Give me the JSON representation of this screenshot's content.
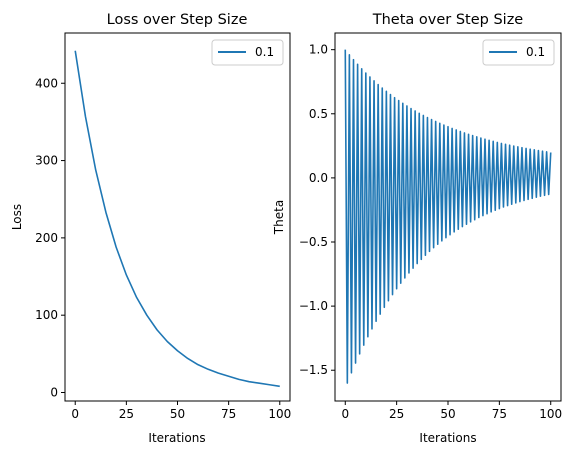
{
  "chart_data": [
    {
      "type": "line",
      "title": "Loss over Step Size",
      "xlabel": "Iterations",
      "ylabel": "Loss",
      "xlim": [
        -5,
        105
      ],
      "ylim": [
        -11,
        465
      ],
      "xticks": [
        0,
        25,
        50,
        75,
        100
      ],
      "yticks": [
        0,
        100,
        200,
        300,
        400
      ],
      "xtick_labels": [
        "0",
        "25",
        "50",
        "75",
        "100"
      ],
      "ytick_labels": [
        "0",
        "100",
        "200",
        "300",
        "400"
      ],
      "grid": false,
      "legend_position": "top-right",
      "series": [
        {
          "name": "0.1",
          "color": "#1f77b4",
          "x": [
            0,
            5,
            10,
            15,
            20,
            25,
            30,
            35,
            40,
            45,
            50,
            55,
            60,
            65,
            70,
            75,
            80,
            85,
            90,
            95,
            100
          ],
          "y": [
            442,
            357,
            288,
            233,
            188,
            152,
            123,
            100,
            81,
            66,
            54,
            44,
            36,
            30,
            25,
            21,
            17,
            14,
            12,
            10,
            8
          ]
        }
      ]
    },
    {
      "type": "line",
      "title": "Theta over Step Size",
      "xlabel": "Iterations",
      "ylabel": "Theta",
      "xlim": [
        -5,
        105
      ],
      "ylim": [
        -1.74,
        1.13
      ],
      "xticks": [
        0,
        25,
        50,
        75,
        100
      ],
      "yticks": [
        -1.5,
        -1.0,
        -0.5,
        0.0,
        0.5,
        1.0
      ],
      "xtick_labels": [
        "0",
        "25",
        "50",
        "75",
        "100"
      ],
      "ytick_labels": [
        "−1.5",
        "−1.0",
        "−0.5",
        "0.0",
        "0.5",
        "1.0"
      ],
      "grid": false,
      "legend_position": "top-right",
      "series": [
        {
          "name": "0.1",
          "color": "#1f77b4",
          "x": [
            0,
            1,
            2,
            3,
            4,
            5,
            6,
            7,
            8,
            9,
            10,
            11,
            12,
            13,
            14,
            15,
            16,
            17,
            18,
            19,
            20,
            21,
            22,
            23,
            24,
            25,
            26,
            27,
            28,
            29,
            30,
            31,
            32,
            33,
            34,
            35,
            36,
            37,
            38,
            39,
            40,
            41,
            42,
            43,
            44,
            45,
            46,
            47,
            48,
            49,
            50,
            51,
            52,
            53,
            54,
            55,
            56,
            57,
            58,
            59,
            60,
            61,
            62,
            63,
            64,
            65,
            66,
            67,
            68,
            69,
            70,
            71,
            72,
            73,
            74,
            75,
            76,
            77,
            78,
            79,
            80,
            81,
            82,
            83,
            84,
            85,
            86,
            87,
            88,
            89,
            90,
            91,
            92,
            93,
            94,
            95,
            96,
            97,
            98,
            99,
            100
          ],
          "y": [
            1.0,
            -1.6,
            0.96,
            -1.52,
            0.922,
            -1.444,
            0.886,
            -1.372,
            0.851,
            -1.304,
            0.818,
            -1.239,
            0.787,
            -1.177,
            0.757,
            -1.118,
            0.728,
            -1.062,
            0.701,
            -1.009,
            0.675,
            -0.958,
            0.65,
            -0.91,
            0.626,
            -0.864,
            0.603,
            -0.821,
            0.582,
            -0.78,
            0.561,
            -0.741,
            0.541,
            -0.704,
            0.522,
            -0.668,
            0.504,
            -0.635,
            0.487,
            -0.603,
            0.471,
            -0.573,
            0.455,
            -0.544,
            0.44,
            -0.517,
            0.426,
            -0.491,
            0.412,
            -0.466,
            0.399,
            -0.443,
            0.386,
            -0.421,
            0.374,
            -0.4,
            0.362,
            -0.38,
            0.351,
            -0.361,
            0.34,
            -0.343,
            0.33,
            -0.326,
            0.32,
            -0.309,
            0.311,
            -0.294,
            0.302,
            -0.279,
            0.293,
            -0.265,
            0.285,
            -0.252,
            0.277,
            -0.239,
            0.269,
            -0.227,
            0.262,
            -0.216,
            0.255,
            -0.205,
            0.248,
            -0.195,
            0.242,
            -0.185,
            0.236,
            -0.176,
            0.23,
            -0.167,
            0.224,
            -0.159,
            0.219,
            -0.151,
            0.213,
            -0.143,
            0.208,
            -0.136,
            0.203,
            -0.129,
            0.198
          ]
        }
      ]
    }
  ]
}
